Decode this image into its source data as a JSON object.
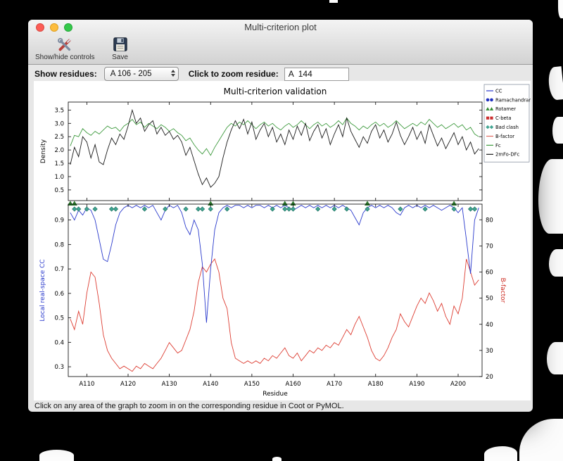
{
  "window": {
    "title": "Multi-criterion plot",
    "toolbar": {
      "show_hide_label": "Show/hide controls",
      "save_label": "Save"
    },
    "controls": {
      "show_residues_label": "Show residues:",
      "residue_range_value": "A 106 - 205",
      "zoom_residue_label": "Click to zoom residue:",
      "zoom_residue_value": "A  144"
    },
    "status_text": "Click on any area of the graph to zoom in on the corresponding residue in Coot or PyMOL."
  },
  "chart_data": {
    "type": "line",
    "title": "Multi-criterion validation",
    "xlabel": "Residue",
    "x_start": 106,
    "xlim": [
      105.5,
      205.8
    ],
    "xticks": [
      110,
      120,
      130,
      140,
      150,
      160,
      170,
      180,
      190,
      200
    ],
    "xtick_labels": [
      "A110",
      "A120",
      "A130",
      "A140",
      "A150",
      "A160",
      "A170",
      "A180",
      "A190",
      "A200"
    ],
    "top": {
      "ylabel": "Density",
      "ylim": [
        0.1,
        3.8
      ],
      "yticks": [
        0.5,
        1.0,
        1.5,
        2.0,
        2.5,
        3.0,
        3.5
      ],
      "series": [
        {
          "name": "Fc",
          "color": "#3f9b3f",
          "values": [
            2.15,
            2.55,
            2.5,
            2.8,
            2.65,
            2.55,
            2.7,
            2.6,
            2.75,
            2.9,
            2.8,
            2.85,
            2.7,
            2.9,
            3.0,
            3.15,
            2.95,
            3.05,
            2.85,
            3.0,
            2.9,
            2.8,
            2.95,
            2.85,
            2.7,
            2.8,
            2.65,
            2.55,
            2.35,
            2.45,
            2.2,
            2.0,
            1.85,
            2.05,
            1.8,
            2.1,
            2.35,
            2.6,
            2.85,
            3.0,
            2.9,
            3.05,
            2.95,
            3.1,
            2.95,
            2.8,
            2.95,
            3.05,
            2.9,
            3.0,
            2.85,
            2.75,
            2.9,
            3.0,
            2.85,
            2.95,
            3.1,
            2.95,
            2.8,
            2.95,
            3.05,
            2.9,
            3.0,
            2.85,
            2.95,
            3.1,
            2.95,
            3.2,
            3.0,
            2.9,
            2.75,
            2.9,
            2.8,
            2.95,
            3.05,
            2.9,
            3.0,
            2.85,
            2.95,
            3.1,
            2.95,
            2.8,
            2.9,
            3.0,
            2.9,
            3.05,
            2.95,
            3.15,
            3.0,
            2.85,
            2.95,
            2.8,
            2.9,
            3.0,
            2.85,
            2.95,
            2.75,
            2.85,
            2.6,
            2.5
          ]
        },
        {
          "name": "2mFo-DFc",
          "color": "#1a1a1a",
          "values": [
            1.45,
            2.1,
            1.75,
            2.5,
            2.3,
            1.7,
            2.2,
            1.55,
            1.45,
            2.0,
            2.45,
            2.2,
            2.6,
            2.4,
            2.9,
            3.5,
            3.0,
            3.2,
            2.7,
            2.95,
            3.1,
            2.6,
            2.85,
            2.55,
            2.7,
            2.4,
            2.55,
            2.3,
            1.8,
            2.1,
            1.6,
            1.1,
            0.7,
            0.95,
            0.6,
            0.75,
            1.0,
            1.7,
            2.3,
            2.75,
            3.1,
            2.8,
            3.15,
            2.6,
            3.05,
            2.4,
            2.75,
            3.0,
            2.5,
            2.85,
            2.3,
            2.6,
            2.2,
            2.75,
            2.4,
            2.9,
            2.55,
            3.0,
            2.35,
            2.7,
            2.95,
            2.45,
            2.8,
            2.2,
            2.6,
            2.95,
            2.5,
            3.2,
            2.7,
            2.4,
            2.1,
            2.5,
            2.25,
            2.7,
            2.95,
            2.45,
            2.75,
            2.3,
            2.6,
            3.05,
            2.55,
            2.2,
            2.5,
            2.85,
            2.4,
            2.7,
            2.25,
            2.95,
            2.55,
            2.15,
            2.45,
            2.05,
            2.35,
            2.65,
            2.2,
            2.5,
            2.0,
            2.3,
            1.85,
            2.05
          ]
        }
      ]
    },
    "bottom": {
      "left_ylabel": "Local real-space CC",
      "left_color": "#2a3acc",
      "left_ylim": [
        0.26,
        0.965
      ],
      "left_yticks": [
        0.3,
        0.4,
        0.5,
        0.6,
        0.7,
        0.8,
        0.9
      ],
      "right_ylabel": "B-factor",
      "right_color": "#cc2a1f",
      "right_ylim": [
        20,
        86
      ],
      "right_yticks": [
        20,
        30,
        40,
        50,
        60,
        70,
        80
      ],
      "cc_series": {
        "name": "CC",
        "color": "#2a3acc",
        "values": [
          0.93,
          0.9,
          0.94,
          0.92,
          0.95,
          0.94,
          0.9,
          0.82,
          0.74,
          0.73,
          0.8,
          0.88,
          0.93,
          0.95,
          0.96,
          0.95,
          0.96,
          0.95,
          0.96,
          0.95,
          0.96,
          0.93,
          0.9,
          0.94,
          0.96,
          0.95,
          0.96,
          0.93,
          0.87,
          0.84,
          0.9,
          0.86,
          0.72,
          0.48,
          0.7,
          0.86,
          0.93,
          0.95,
          0.96,
          0.95,
          0.96,
          0.96,
          0.95,
          0.96,
          0.95,
          0.96,
          0.96,
          0.95,
          0.96,
          0.95,
          0.96,
          0.95,
          0.96,
          0.95,
          0.94,
          0.95,
          0.96,
          0.95,
          0.96,
          0.95,
          0.96,
          0.95,
          0.96,
          0.95,
          0.96,
          0.95,
          0.96,
          0.95,
          0.94,
          0.91,
          0.88,
          0.93,
          0.95,
          0.96,
          0.95,
          0.96,
          0.95,
          0.96,
          0.95,
          0.93,
          0.92,
          0.95,
          0.96,
          0.95,
          0.96,
          0.95,
          0.96,
          0.95,
          0.96,
          0.95,
          0.94,
          0.95,
          0.96,
          0.95,
          0.93,
          0.95,
          0.82,
          0.68,
          0.9,
          0.95
        ]
      },
      "bf_series": {
        "name": "B-factor",
        "color": "#dd3d32",
        "values": [
          42,
          38,
          45,
          40,
          52,
          60,
          58,
          48,
          36,
          30,
          27,
          25,
          23,
          24,
          23,
          22,
          24,
          23,
          25,
          24,
          23,
          25,
          27,
          30,
          33,
          31,
          29,
          30,
          34,
          38,
          45,
          56,
          62,
          60,
          63,
          65,
          60,
          50,
          46,
          33,
          27,
          26,
          25,
          26,
          25,
          26,
          25,
          27,
          26,
          28,
          27,
          29,
          31,
          28,
          27,
          29,
          26,
          28,
          30,
          29,
          31,
          30,
          32,
          31,
          33,
          32,
          35,
          38,
          36,
          40,
          43,
          39,
          35,
          30,
          27,
          26,
          28,
          31,
          35,
          38,
          44,
          41,
          39,
          43,
          47,
          50,
          48,
          52,
          49,
          45,
          48,
          43,
          40,
          47,
          44,
          50,
          65,
          60,
          55,
          57
        ]
      },
      "clash_color": "#3fa491",
      "clash_residues": [
        107,
        108,
        110,
        112,
        116,
        117,
        124,
        129,
        134,
        137,
        138,
        140,
        144,
        155,
        158,
        159,
        160,
        166,
        170,
        173,
        178,
        186,
        192,
        199,
        203,
        204
      ],
      "rotamer_color": "#2f8b2f",
      "rotamer_residues": [
        106,
        107,
        140,
        158,
        160,
        178,
        199
      ]
    },
    "legend": [
      {
        "label": "CC",
        "type": "line",
        "color": "#2a3acc"
      },
      {
        "label": "Ramachandran",
        "type": "circles",
        "color": "#1f2fbf"
      },
      {
        "label": "Rotamer",
        "type": "triangles",
        "color": "#2f8b2f"
      },
      {
        "label": "C-beta",
        "type": "squares",
        "color": "#cc2f2f"
      },
      {
        "label": "Bad clash",
        "type": "diamonds",
        "color": "#3fa491"
      },
      {
        "label": "B-factor",
        "type": "line",
        "color": "#e0695f"
      },
      {
        "label": "Fc",
        "type": "line",
        "color": "#3f9b3f"
      },
      {
        "label": "2mFo-DFc",
        "type": "line",
        "color": "#1a1a1a"
      }
    ]
  }
}
